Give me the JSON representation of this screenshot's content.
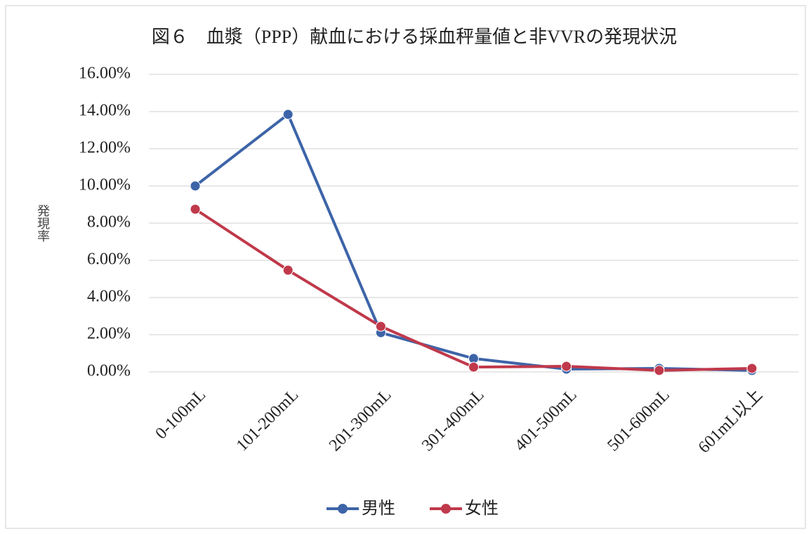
{
  "chart_data": {
    "type": "line",
    "title": "図６　血漿（PPP）献血における採血秤量値と非VVRの発現状況",
    "y_label": "発現率",
    "categories": [
      "0-100mL",
      "101-200mL",
      "201-300mL",
      "301-400mL",
      "401-500mL",
      "501-600mL",
      "601mL以上"
    ],
    "series": [
      {
        "name": "男性",
        "color": "#3d64a8",
        "values": [
          10.0,
          13.85,
          2.11,
          0.72,
          0.15,
          0.19,
          0.08
        ]
      },
      {
        "name": "女性",
        "color": "#c0394b",
        "values": [
          8.75,
          5.47,
          2.45,
          0.26,
          0.3,
          0.08,
          0.19
        ]
      }
    ],
    "ylim": [
      0,
      16
    ],
    "yticks": [
      {
        "value": 0,
        "label": "0.00%"
      },
      {
        "value": 2,
        "label": "2.00%"
      },
      {
        "value": 4,
        "label": "4.00%"
      },
      {
        "value": 6,
        "label": "6.00%"
      },
      {
        "value": 8,
        "label": "8.00%"
      },
      {
        "value": 10,
        "label": "10.00%"
      },
      {
        "value": 12,
        "label": "12.00%"
      },
      {
        "value": 14,
        "label": "14.00%"
      },
      {
        "value": 16,
        "label": "16.00%"
      }
    ],
    "grid": true,
    "legend": "bottom"
  }
}
